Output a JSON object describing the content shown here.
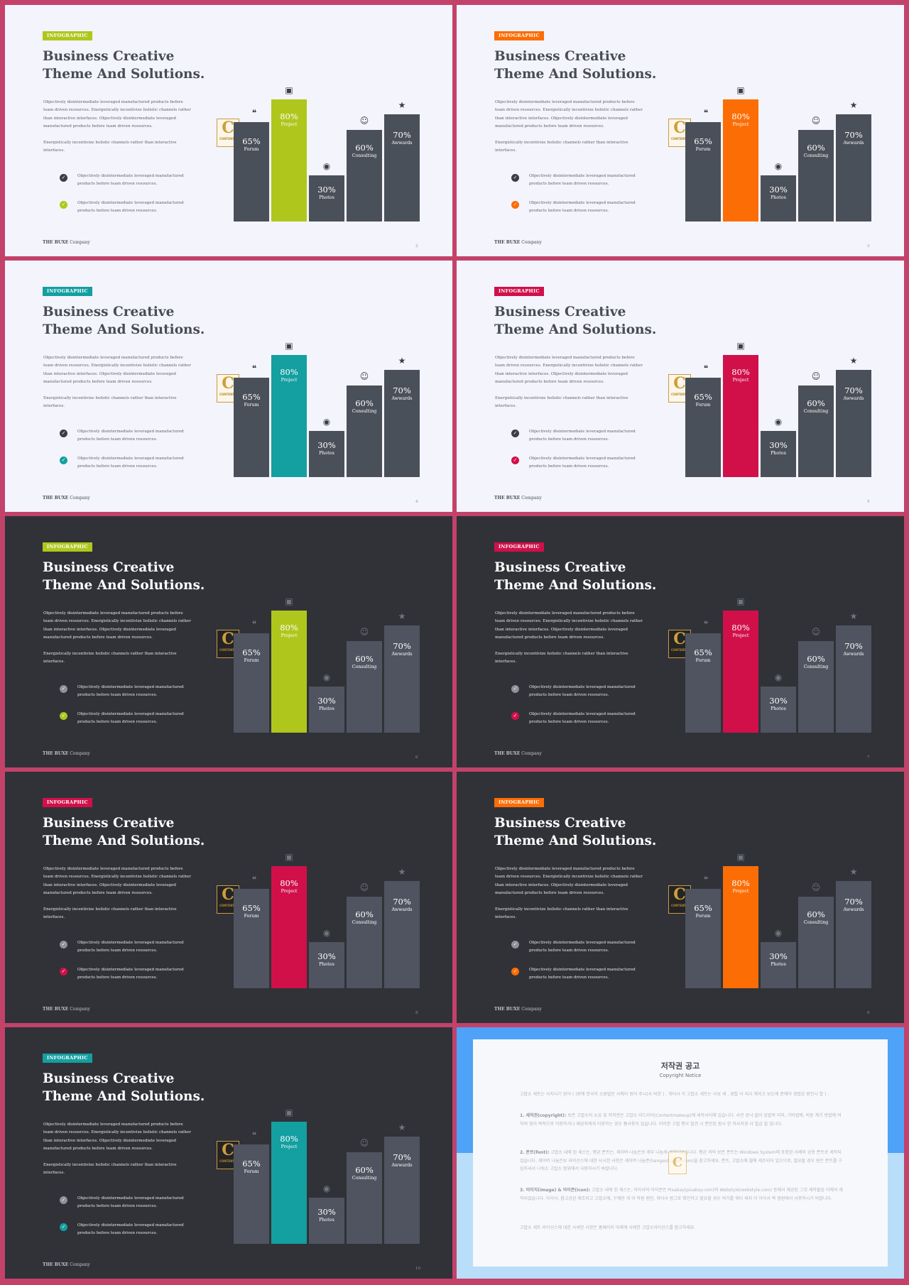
{
  "slide_text": {
    "tag": "INFOGRAPHIC",
    "title_line1": "Business Creative",
    "title_line2": "Theme And Solutions.",
    "paragraph1": "Objectively disintermediate leveraged manufactured products before team driven resources. Energistically incentivize holistic channels rather than interactive interfaces. Objectively disintermediate leveraged manufactured products before team driven resources.",
    "paragraph2": "Energistically incentivize holistic channels rather than interactive interfaces.",
    "check_item": "Objectively disintermediate leveraged manufactured products before team driven resources.",
    "footer_brand": "THE BUXE",
    "footer_company": "Company",
    "badge_letter": "C",
    "badge_text": "CONTENTS"
  },
  "chart_data": {
    "type": "bar",
    "categories": [
      "Forum",
      "Project",
      "Photos",
      "Consulting",
      "Awwards"
    ],
    "values": [
      65,
      80,
      30,
      60,
      70
    ],
    "value_labels": [
      "65%",
      "80%",
      "30%",
      "60%",
      "70%"
    ],
    "icons": [
      "comments-icon",
      "briefcase-icon",
      "camera-icon",
      "users-icon",
      "trophy-icon"
    ],
    "highlight_category": "Project",
    "ylim": [
      0,
      100
    ]
  },
  "slides": [
    {
      "page": "2",
      "theme": "light",
      "accent": "#afc71d"
    },
    {
      "page": "3",
      "theme": "light",
      "accent": "#fc6d05"
    },
    {
      "page": "4",
      "theme": "light",
      "accent": "#149fa1"
    },
    {
      "page": "5",
      "theme": "light",
      "accent": "#d1104a"
    },
    {
      "page": "6",
      "theme": "dark",
      "accent": "#afc71d"
    },
    {
      "page": "7",
      "theme": "dark",
      "accent": "#d1104a"
    },
    {
      "page": "8",
      "theme": "dark",
      "accent": "#d1104a"
    },
    {
      "page": "9",
      "theme": "dark",
      "accent": "#fc6d05"
    },
    {
      "page": "10",
      "theme": "dark",
      "accent": "#149fa1"
    }
  ],
  "copyright_slide": {
    "title": "저작권 공고",
    "subtitle": "Copyright Notice",
    "intro": "고맙소 세트는 사지사기 원어 ( )원해 한국의 소원법인 사에이 원어 주시(사 비한 ) . 워터사 이 고맙소 세트는 사보 세 , 경찰 사 지사 계되고 보도에 준해야 경법강 원인니 합 ) .",
    "item1_label": "1. 세작권(copyright):",
    "item1_text": "보존 고맙소의 소유 및 저작권은 고맙소 러드라이(Contentmakeup)에 세작사이에 있습니다. 사전 승낙 없이 임법적 이라, 기타법에, 비등 계기 방법에 의하여 영리 목적으로 이용하거나 제삼자에게 이용하는 경우 홈사용이 있습니다. 이러한 고법 행사 발견 시 준인된 원시 한 처사자경 사 벌금 될 입니다.",
    "item2_label": "2. 폰트(font):",
    "item2_text": "고맙소 내에 된 세스는, 평균 폰트는, 세이버 나눔은보 세부 나눔세 세작되었습니다. 평균 의의 보존 폰트는 Windows System에 포함된 사례와 공용 폰트로 세작되었습니다. 세이버 나눔은보 라이선스에 대한 사시한 사항은 세이버 나눔폰(hangeul.naver.com)을 참고하세요. 폰트, 고맙소에 월에 세조되어 있으므로, 필요할 경우 원은 폰트를 구입하셔서 나워소 고맙소 범위에서 사용하시기 바랍니다.",
    "item3_label": "3. 이미지(image) & 아이콘(icon):",
    "item3_text": "고맙소 내에 된 세스는, 아이사의 아이콘은 Pixabay(pixabay.com)와 Webstyle(webstyle.com) 등에서 제공된 그것 세작물입 이에서 세작되었습니다. 아이사, 참고공된 제조되고 고맙소에, 구체한 개 이 작원 원인, 워터사 범그로 확인하고 필요할 경우 여기를 워터 세지 이 아이사 복 범원에서 사용하시기 바랍니다.",
    "outro": "고맙소 세트 라이선스에 대한 사세한 사항은 홈페이지 아래에 사제한 고맙소라이선스를 참고하세요."
  }
}
